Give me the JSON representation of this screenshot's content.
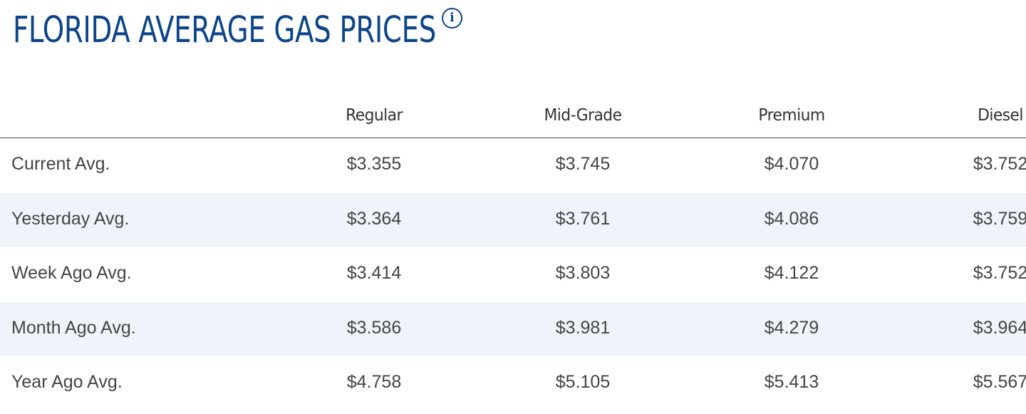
{
  "page": {
    "title": "FLORIDA AVERAGE GAS PRICES",
    "info_icon": "info-icon",
    "title_color": "#0d4588",
    "row_shade_color": "#eef4fa"
  },
  "table": {
    "columns": [
      "Regular",
      "Mid-Grade",
      "Premium",
      "Diesel"
    ],
    "rows": [
      {
        "label": "Current Avg.",
        "values": [
          "$3.355",
          "$3.745",
          "$4.070",
          "$3.752"
        ]
      },
      {
        "label": "Yesterday Avg.",
        "values": [
          "$3.364",
          "$3.761",
          "$4.086",
          "$3.759"
        ]
      },
      {
        "label": "Week Ago Avg.",
        "values": [
          "$3.414",
          "$3.803",
          "$4.122",
          "$3.752"
        ]
      },
      {
        "label": "Month Ago Avg.",
        "values": [
          "$3.586",
          "$3.981",
          "$4.279",
          "$3.964"
        ]
      },
      {
        "label": "Year Ago Avg.",
        "values": [
          "$4.758",
          "$5.105",
          "$5.413",
          "$5.567"
        ]
      }
    ]
  }
}
